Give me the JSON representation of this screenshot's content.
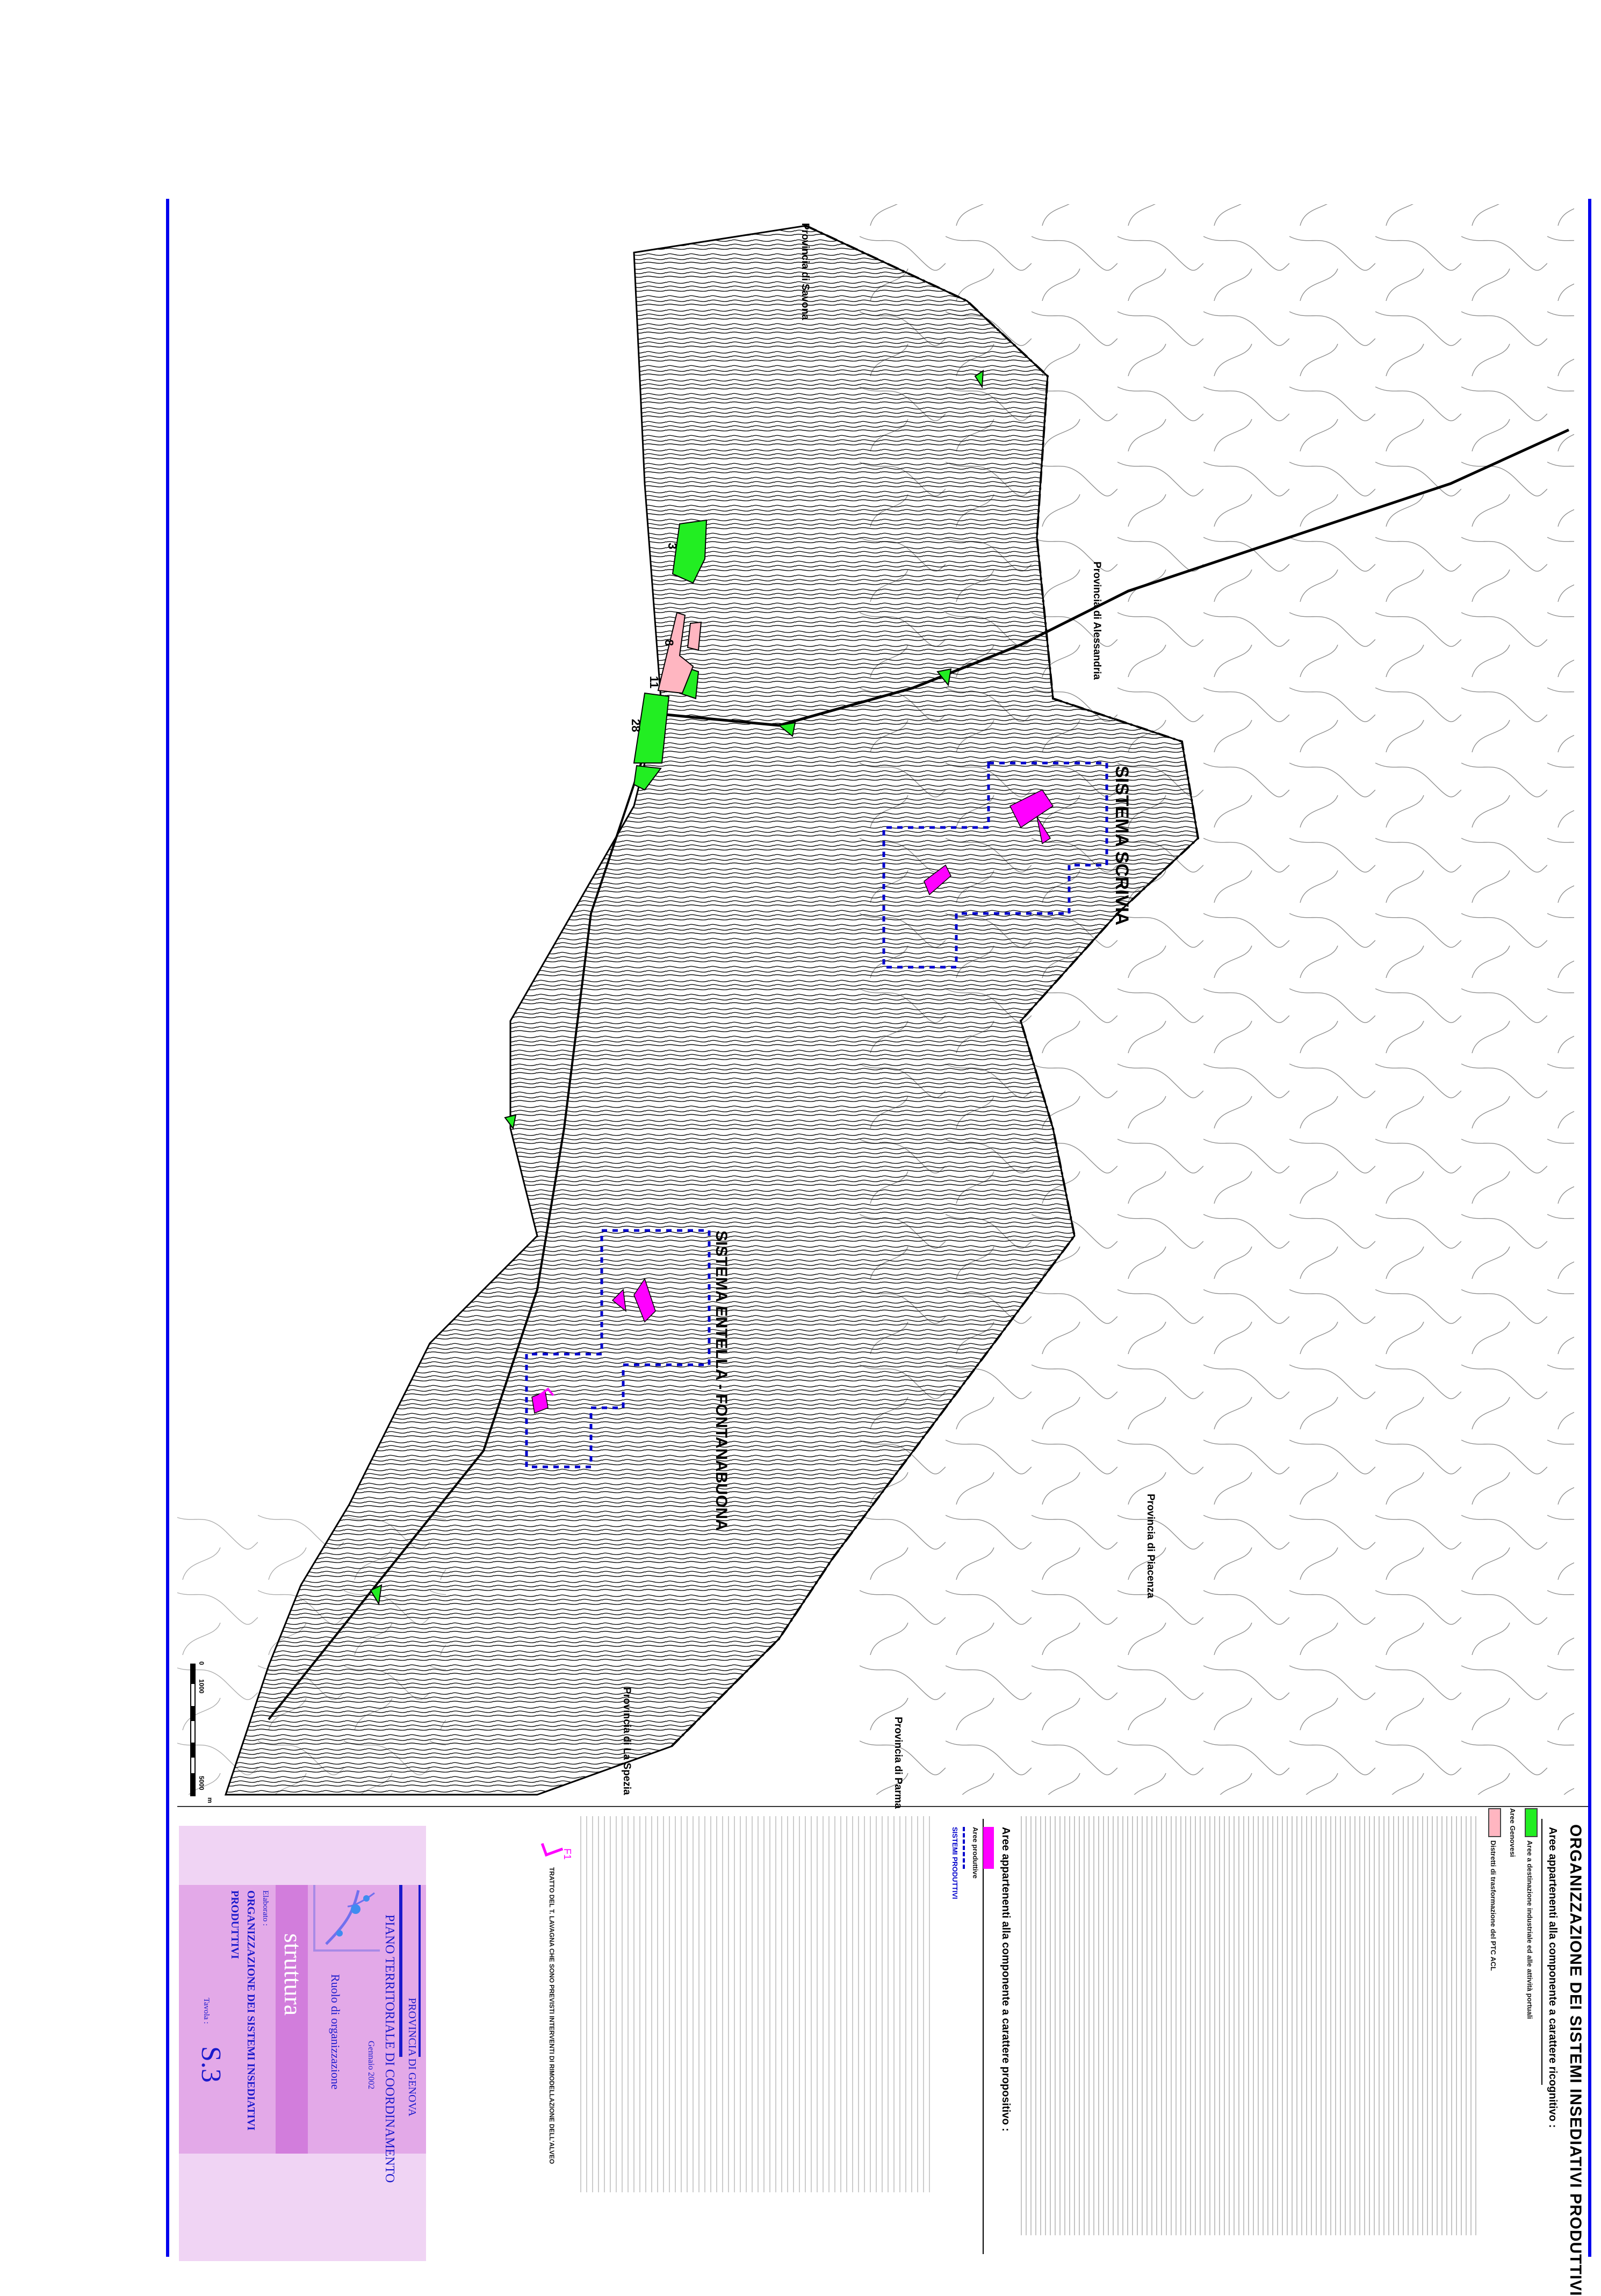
{
  "title": "ORGANIZZAZIONE DEI SISTEMI INSEDIATIVI PRODUTTIVI",
  "legend": {
    "section1_heading": "Aree appartenenti alla componente a carattere ricognitivo :",
    "section1_items": [
      {
        "label": "Aree a destinazione industriale ed alle attività portuali",
        "color": "#22ee22"
      },
      {
        "label": "Distretti di trasformazione del PTC ACL",
        "color": "#ffb6c1"
      }
    ],
    "section1_sub": "Aree Genovesi",
    "section2_heading": "Aree appartenenti alla componente a carattere propositivo :",
    "section2_items": [
      {
        "label": "Aree produttive",
        "color": "#ff00ff"
      },
      {
        "label": "SISTEMI PRODUTTIVI",
        "color": "#0000cc",
        "style": "dashed"
      }
    ],
    "note_code": "F1",
    "note_text": "TRATTO DEL T. LAVAGNA CHE SONO PREVISTI INTERVENTI DI RIMODELLAZIONE DELL'ALVEO"
  },
  "map": {
    "province_labels": [
      "Provincia di Savona",
      "Provincia di Alessandria",
      "Provincia di Piacenza",
      "Provincia di Parma",
      "Provincia di La Spezia"
    ],
    "system_labels": [
      "SISTEMA SCRIVIA",
      "SISTEMA ENTELLA - FONTANABUONA"
    ],
    "area_numbers": [
      "3",
      "8",
      "11",
      "28"
    ],
    "colors": {
      "industrial": "#22ee22",
      "district": "#ffb6c1",
      "productive": "#ff00ff",
      "system_border": "#0000cc"
    }
  },
  "scale": {
    "ticks": [
      "0",
      "1000",
      "5000"
    ],
    "unit": "m"
  },
  "title_block": {
    "authority": "PROVINCIA DI GENOVA",
    "plan": "PIANO TERRITORIALE DI COORDINAMENTO",
    "date": "Gennaio 2002",
    "section": "Ruolo di organizzazione",
    "theme": "struttura",
    "elaborato_label": "Elaborato :",
    "elaborato_line1": "ORGANIZZAZIONE DEI SISTEMI INSEDIATIVI",
    "elaborato_line2": "PRODUTTIVI",
    "tavola_label": "Tavola :",
    "tavola": "S.3",
    "colors": {
      "background": "#f0d4f4",
      "band": "#e3a9e8",
      "strip": "#d27ddc",
      "text": "#1a1acc"
    }
  }
}
